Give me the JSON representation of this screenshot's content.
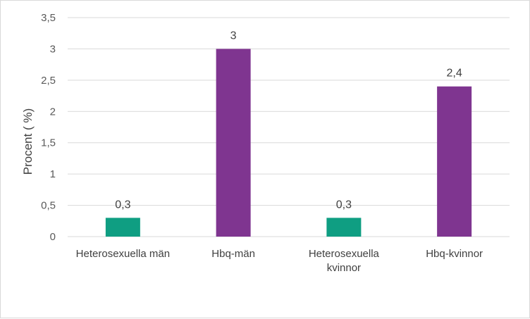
{
  "chart_data": {
    "type": "bar",
    "ylabel": "Procent ( %)",
    "xlabel": "",
    "title": "",
    "ylim": [
      0,
      3.5
    ],
    "y_tick_step": 0.5,
    "y_tick_labels": [
      "0",
      "0,5",
      "1",
      "1,5",
      "2",
      "2,5",
      "3",
      "3,5"
    ],
    "grid": true,
    "legend": "none",
    "categories": [
      [
        "Heterosexuella män"
      ],
      [
        "Hbq-män"
      ],
      [
        "Heterosexuella",
        "kvinnor"
      ],
      [
        "Hbq-kvinnor"
      ]
    ],
    "values": [
      0.3,
      3,
      0.3,
      2.4
    ],
    "value_labels": [
      "0,3",
      "3",
      "0,3",
      "2,4"
    ],
    "colors": [
      "#0f9e82",
      "#7f3590",
      "#0f9e82",
      "#7f3590"
    ]
  }
}
